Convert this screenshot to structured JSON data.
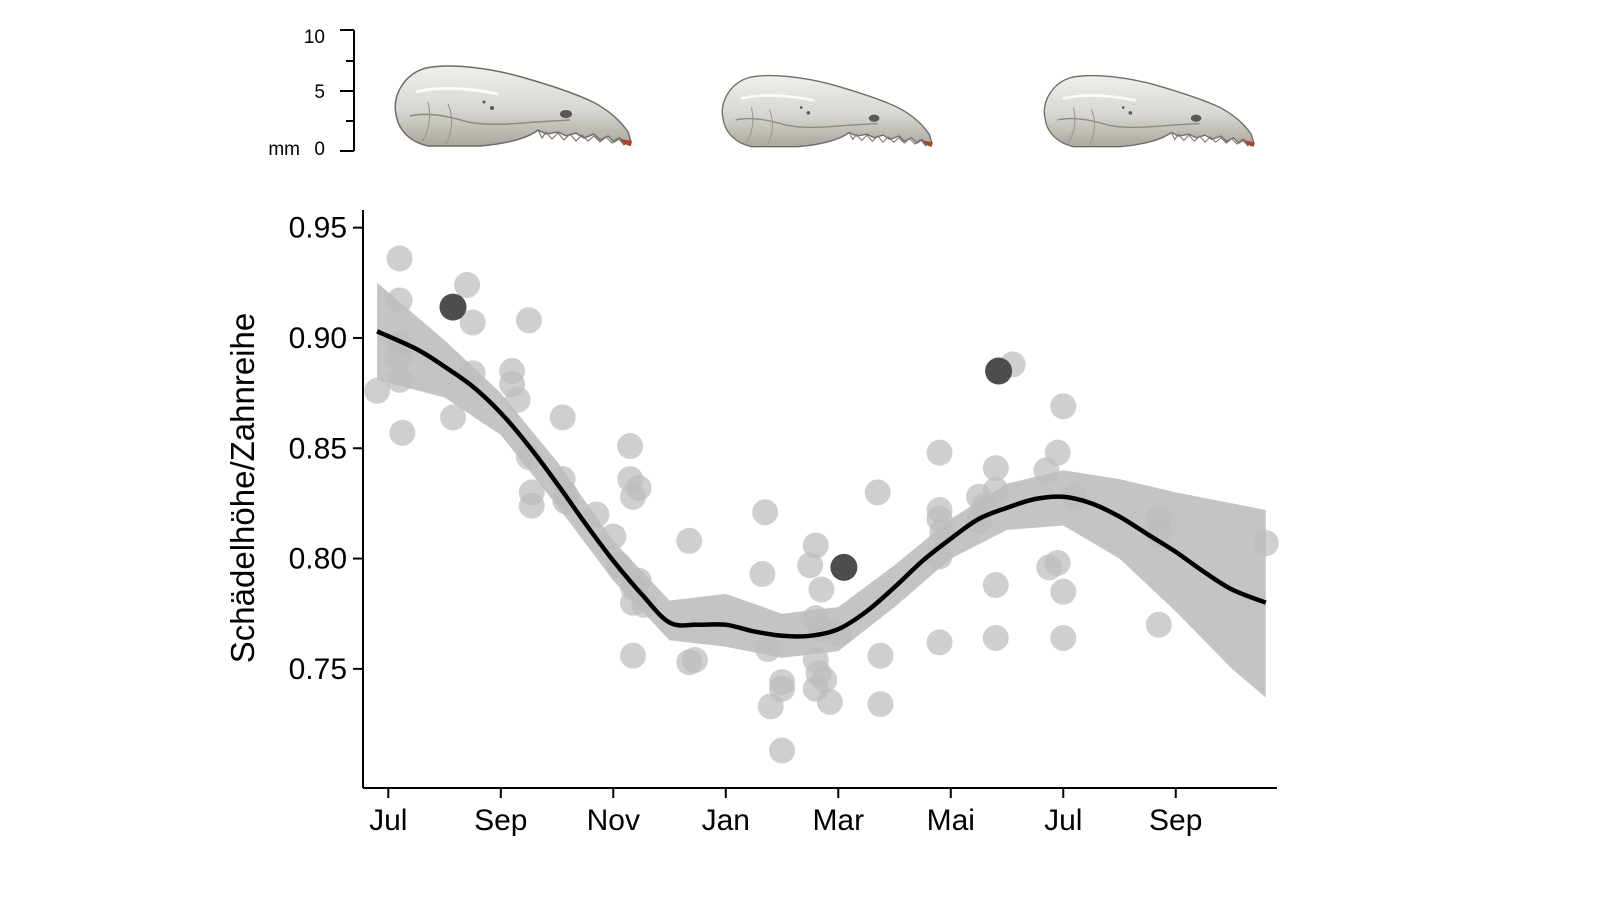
{
  "scale_bar": {
    "unit": "mm",
    "ticks": [
      "10",
      "5",
      "0"
    ]
  },
  "illustrations": [
    {
      "name": "skull-illustration"
    },
    {
      "name": "skull-illustration"
    },
    {
      "name": "skull-illustration"
    }
  ],
  "colors": {
    "points": "#bdbdbd",
    "highlight_points": "#4d4d4d",
    "ribbon": "#c4c4c4",
    "smooth_line": "#000000",
    "axis": "#000000"
  },
  "chart_data": {
    "type": "scatter",
    "title": "",
    "xlabel": "",
    "ylabel": "Schädelhöhe/Zahnreihe",
    "x_ticks": [
      "Jul",
      "Sep",
      "Nov",
      "Jan",
      "Mar",
      "Mai",
      "Jul",
      "Sep"
    ],
    "x_tick_values": [
      0,
      2,
      4,
      6,
      8,
      10,
      12,
      14
    ],
    "x_unit": "months since July 1",
    "y_ticks": [
      "0.95",
      "0.90",
      "0.85",
      "0.80",
      "0.75"
    ],
    "y_tick_values": [
      0.95,
      0.9,
      0.85,
      0.8,
      0.75
    ],
    "xlim": [
      -0.45,
      15.8
    ],
    "ylim": [
      0.696,
      0.958
    ],
    "grid": false,
    "legend": "none",
    "series": [
      {
        "kind": "points",
        "values": [
          [
            -0.2,
            0.876
          ],
          [
            0.2,
            0.936
          ],
          [
            0.2,
            0.917
          ],
          [
            0.2,
            0.897
          ],
          [
            0.2,
            0.891
          ],
          [
            0.2,
            0.881
          ],
          [
            0.25,
            0.857
          ],
          [
            1.15,
            0.864
          ],
          [
            1.4,
            0.924
          ],
          [
            1.5,
            0.907
          ],
          [
            1.5,
            0.884
          ],
          [
            2.2,
            0.885
          ],
          [
            2.2,
            0.879
          ],
          [
            2.3,
            0.872
          ],
          [
            2.5,
            0.908
          ],
          [
            2.5,
            0.846
          ],
          [
            2.55,
            0.83
          ],
          [
            2.55,
            0.824
          ],
          [
            3.1,
            0.864
          ],
          [
            3.1,
            0.836
          ],
          [
            3.15,
            0.829
          ],
          [
            3.15,
            0.826
          ],
          [
            3.7,
            0.82
          ],
          [
            4.0,
            0.81
          ],
          [
            4.1,
            0.797
          ],
          [
            4.3,
            0.851
          ],
          [
            4.3,
            0.836
          ],
          [
            4.35,
            0.828
          ],
          [
            4.45,
            0.832
          ],
          [
            4.35,
            0.787
          ],
          [
            4.35,
            0.78
          ],
          [
            4.45,
            0.79
          ],
          [
            4.35,
            0.756
          ],
          [
            4.55,
            0.779
          ],
          [
            5.35,
            0.808
          ],
          [
            5.35,
            0.753
          ],
          [
            5.45,
            0.754
          ],
          [
            6.7,
            0.821
          ],
          [
            6.65,
            0.793
          ],
          [
            6.75,
            0.759
          ],
          [
            6.8,
            0.733
          ],
          [
            7.0,
            0.744
          ],
          [
            7.0,
            0.741
          ],
          [
            7.0,
            0.713
          ],
          [
            7.5,
            0.797
          ],
          [
            7.6,
            0.806
          ],
          [
            7.7,
            0.786
          ],
          [
            7.6,
            0.773
          ],
          [
            7.7,
            0.768
          ],
          [
            7.6,
            0.754
          ],
          [
            7.65,
            0.748
          ],
          [
            7.6,
            0.741
          ],
          [
            7.75,
            0.745
          ],
          [
            7.85,
            0.735
          ],
          [
            8.0,
            0.766
          ],
          [
            8.7,
            0.83
          ],
          [
            8.75,
            0.756
          ],
          [
            8.75,
            0.734
          ],
          [
            9.8,
            0.848
          ],
          [
            9.8,
            0.822
          ],
          [
            9.8,
            0.818
          ],
          [
            9.85,
            0.812
          ],
          [
            9.8,
            0.801
          ],
          [
            9.8,
            0.762
          ],
          [
            10.5,
            0.817
          ],
          [
            10.5,
            0.828
          ],
          [
            10.6,
            0.824
          ],
          [
            10.8,
            0.841
          ],
          [
            10.8,
            0.831
          ],
          [
            10.8,
            0.788
          ],
          [
            10.8,
            0.764
          ],
          [
            11.1,
            0.888
          ],
          [
            11.7,
            0.84
          ],
          [
            11.75,
            0.796
          ],
          [
            11.9,
            0.848
          ],
          [
            11.9,
            0.798
          ],
          [
            12.0,
            0.869
          ],
          [
            12.0,
            0.785
          ],
          [
            12.0,
            0.764
          ],
          [
            12.2,
            0.828
          ],
          [
            13.7,
            0.818
          ],
          [
            13.7,
            0.811
          ],
          [
            13.7,
            0.77
          ],
          [
            15.6,
            0.807
          ]
        ]
      },
      {
        "kind": "highlighted points",
        "values": [
          [
            1.15,
            0.914
          ],
          [
            8.1,
            0.796
          ],
          [
            10.85,
            0.885
          ]
        ]
      },
      {
        "kind": "smooth line",
        "values": [
          [
            -0.2,
            0.903
          ],
          [
            0.5,
            0.895
          ],
          [
            1.0,
            0.887
          ],
          [
            1.5,
            0.878
          ],
          [
            2.0,
            0.866
          ],
          [
            2.5,
            0.851
          ],
          [
            3.0,
            0.834
          ],
          [
            3.5,
            0.816
          ],
          [
            4.0,
            0.799
          ],
          [
            4.5,
            0.784
          ],
          [
            5.0,
            0.771
          ],
          [
            5.5,
            0.77
          ],
          [
            6.0,
            0.77
          ],
          [
            6.5,
            0.767
          ],
          [
            7.0,
            0.765
          ],
          [
            7.5,
            0.765
          ],
          [
            8.0,
            0.768
          ],
          [
            8.5,
            0.776
          ],
          [
            9.0,
            0.787
          ],
          [
            9.5,
            0.799
          ],
          [
            10.0,
            0.809
          ],
          [
            10.5,
            0.818
          ],
          [
            11.0,
            0.823
          ],
          [
            11.5,
            0.827
          ],
          [
            12.0,
            0.828
          ],
          [
            12.5,
            0.825
          ],
          [
            13.0,
            0.819
          ],
          [
            13.5,
            0.811
          ],
          [
            14.0,
            0.803
          ],
          [
            14.5,
            0.794
          ],
          [
            15.0,
            0.786
          ],
          [
            15.6,
            0.78
          ]
        ]
      },
      {
        "kind": "confidence band",
        "x": [
          -0.2,
          1.0,
          2.0,
          3.0,
          4.0,
          5.0,
          6.0,
          7.0,
          8.0,
          9.0,
          10.0,
          11.0,
          12.0,
          13.0,
          14.0,
          15.0,
          15.6
        ],
        "upper": [
          0.925,
          0.899,
          0.875,
          0.844,
          0.808,
          0.781,
          0.784,
          0.775,
          0.778,
          0.797,
          0.818,
          0.834,
          0.84,
          0.836,
          0.83,
          0.825,
          0.822
        ],
        "lower": [
          0.881,
          0.873,
          0.856,
          0.824,
          0.79,
          0.763,
          0.76,
          0.755,
          0.758,
          0.778,
          0.8,
          0.813,
          0.815,
          0.8,
          0.776,
          0.75,
          0.737
        ]
      }
    ]
  }
}
